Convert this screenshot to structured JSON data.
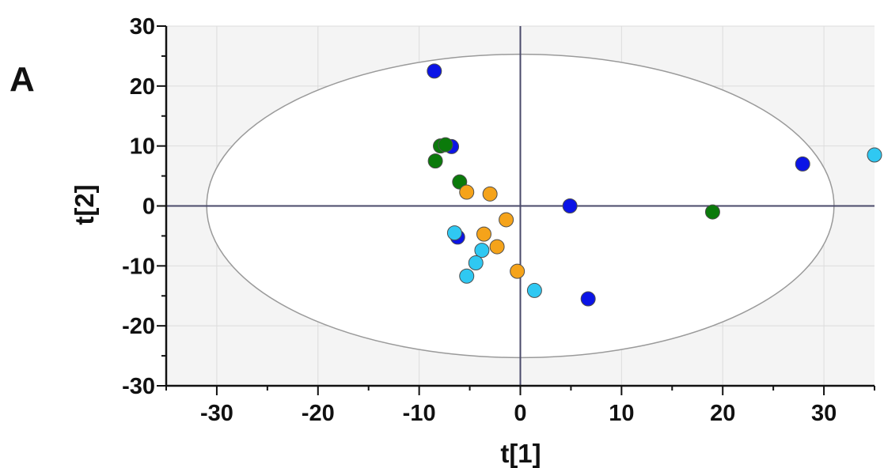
{
  "chart_data": {
    "type": "scatter",
    "panel_label": "A",
    "xlabel": "t[1]",
    "ylabel": "t[2]",
    "xlim": [
      -35,
      35
    ],
    "ylim": [
      -30,
      30
    ],
    "xticks": [
      -30,
      -20,
      -10,
      0,
      10,
      20,
      30
    ],
    "yticks": [
      -30,
      -20,
      -10,
      0,
      10,
      20,
      30
    ],
    "grid": true,
    "ellipse": {
      "cx": 0,
      "cy": 0,
      "rx": 31,
      "ry": 25.3
    },
    "colors": {
      "blue": "#0b14e6",
      "green": "#0b7a0b",
      "orange": "#f5a31a",
      "cyan": "#2fc8f2",
      "background": "#f4f4f4",
      "grid": "#dcdcdc",
      "ellipse": "#9a9a9a"
    },
    "series": [
      {
        "color": "blue",
        "points": [
          [
            -8.5,
            22.5
          ],
          [
            -6.8,
            9.9
          ],
          [
            -6.2,
            -5.2
          ],
          [
            4.9,
            0
          ],
          [
            6.7,
            -15.5
          ],
          [
            27.9,
            7
          ]
        ]
      },
      {
        "color": "green",
        "points": [
          [
            -7.9,
            10
          ],
          [
            -7.4,
            10.2
          ],
          [
            -8.4,
            7.5
          ],
          [
            -6.0,
            4
          ],
          [
            19.0,
            -1
          ]
        ]
      },
      {
        "color": "orange",
        "points": [
          [
            -5.3,
            2.3
          ],
          [
            -3.0,
            2
          ],
          [
            -1.4,
            -2.3
          ],
          [
            -3.6,
            -4.7
          ],
          [
            -2.3,
            -6.8
          ],
          [
            -0.3,
            -10.9
          ]
        ]
      },
      {
        "color": "cyan",
        "points": [
          [
            -6.5,
            -4.5
          ],
          [
            -3.8,
            -7.4
          ],
          [
            -4.4,
            -9.5
          ],
          [
            -5.3,
            -11.7
          ],
          [
            1.4,
            -14.1
          ],
          [
            35,
            8.5
          ]
        ]
      }
    ]
  }
}
